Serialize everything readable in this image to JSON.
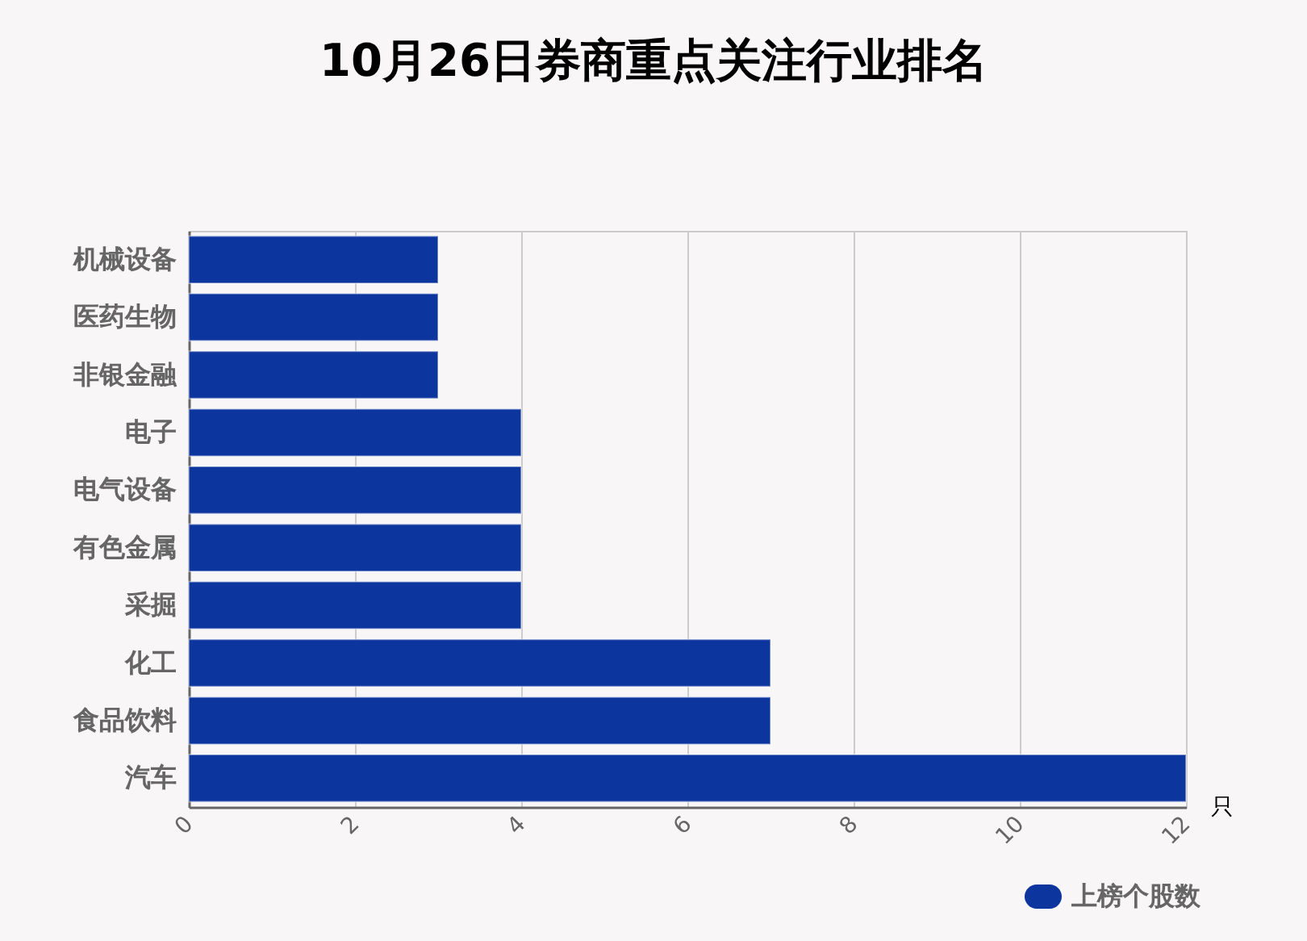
{
  "chart_data": {
    "type": "bar",
    "orientation": "horizontal",
    "title": "10月26日券商重点关注行业排名",
    "xlabel": "只",
    "categories": [
      "机械设备",
      "医药生物",
      "非银金融",
      "电子",
      "电气设备",
      "有色金属",
      "采掘",
      "化工",
      "食品饮料",
      "汽车"
    ],
    "series": [
      {
        "name": "上榜个股数",
        "color": "#0c359e",
        "values": [
          3,
          3,
          3,
          4,
          4,
          4,
          4,
          7,
          7,
          12
        ]
      }
    ],
    "xlim": [
      0,
      12
    ],
    "xticks": [
      0,
      2,
      4,
      6,
      8,
      10,
      12
    ],
    "grid": "x",
    "legend": "bottom right"
  }
}
